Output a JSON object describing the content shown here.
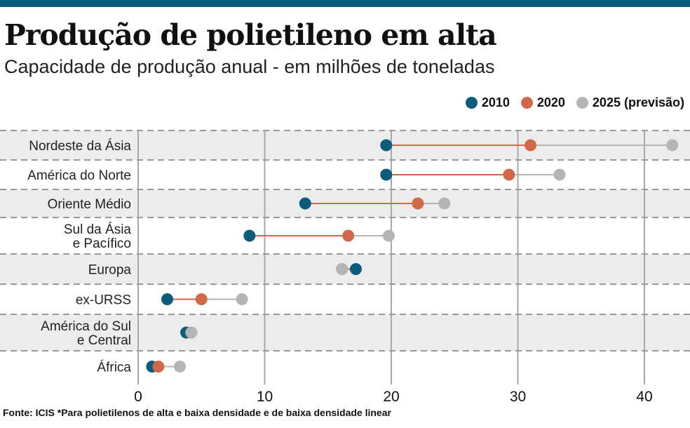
{
  "chart_data": {
    "type": "dumbbell",
    "title": "Produção de polietileno em alta",
    "subtitle": "Capacidade de produção anual - em milhões de toneladas",
    "xlim": [
      0,
      43
    ],
    "xticks": [
      0,
      10,
      20,
      30,
      40
    ],
    "grid": true,
    "legend_position": "top-right",
    "series": [
      {
        "name": "2010",
        "color": "#0b5b7d"
      },
      {
        "name": "2020",
        "color": "#d0694a"
      },
      {
        "name": "2025 (previsão)",
        "color": "#b5b5b5"
      }
    ],
    "categories": [
      {
        "label": [
          "Nordeste da Ásia"
        ],
        "values": [
          19.6,
          31.0,
          42.2
        ]
      },
      {
        "label": [
          "América do Norte"
        ],
        "values": [
          19.6,
          29.3,
          33.3
        ]
      },
      {
        "label": [
          "Oriente Médio"
        ],
        "values": [
          13.2,
          22.1,
          24.2
        ]
      },
      {
        "label": [
          "Sul da Ásia",
          "e Pacífico"
        ],
        "values": [
          8.8,
          16.6,
          19.8
        ]
      },
      {
        "label": [
          "Europa"
        ],
        "values": [
          17.2,
          16.1,
          16.1
        ]
      },
      {
        "label": [
          "ex-URSS"
        ],
        "values": [
          2.3,
          5.0,
          8.2
        ]
      },
      {
        "label": [
          "América do Sul",
          "e Central"
        ],
        "values": [
          3.8,
          4.2,
          4.2
        ]
      },
      {
        "label": [
          "África"
        ],
        "values": [
          1.1,
          1.6,
          3.3
        ]
      }
    ],
    "footer": "Fonte: ICIS *Para polietilenos de alta e baixa densidade e de baixa densidade linear"
  }
}
